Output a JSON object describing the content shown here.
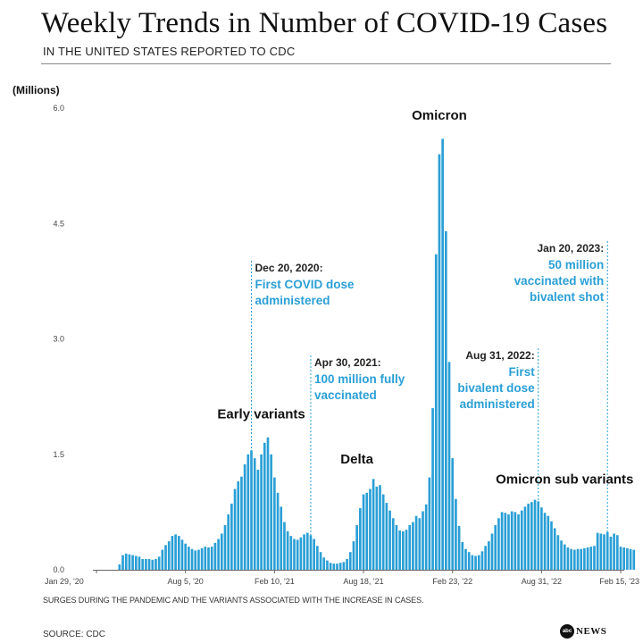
{
  "header": {
    "title": "Weekly Trends in Number of COVID-19 Cases",
    "subtitle": "IN THE UNITED STATES REPORTED TO CDC"
  },
  "footer": {
    "note": "SURGES DURING THE PANDEMIC AND THE VARIANTS ASSOCIATED WITH THE INCREASE IN CASES.",
    "source": "SOURCE: CDC",
    "brand_mark": "abc",
    "brand_text": "NEWS"
  },
  "colors": {
    "bars": "#2a9fd6",
    "annotation_text": "#2a9fd6",
    "text": "#111111"
  },
  "chart_data": {
    "type": "bar",
    "title": "Weekly Trends in Number of COVID-19 Cases",
    "ylabel": "(Millions)",
    "ylim": [
      0,
      6.0
    ],
    "yticks": [
      "0.0",
      "1.5",
      "3.0",
      "4.5",
      "6.0"
    ],
    "x_start_week": 0,
    "x_end_week": 159,
    "xticks": [
      {
        "label": "Jan 29, '20",
        "week": 0
      },
      {
        "label": "Aug 5, '20",
        "week": 27
      },
      {
        "label": "Feb 10, '21",
        "week": 54
      },
      {
        "label": "Aug 18, '21",
        "week": 81
      },
      {
        "label": "Feb 23, '22",
        "week": 108
      },
      {
        "label": "Aug 31, '22",
        "week": 135
      },
      {
        "label": "Feb 15, '23",
        "week": 159
      }
    ],
    "series": [
      {
        "name": "Weekly cases (millions)",
        "values": [
          0.0,
          0.0,
          0.0,
          0.0,
          0.0,
          0.0,
          0.0,
          0.07,
          0.19,
          0.21,
          0.2,
          0.19,
          0.18,
          0.17,
          0.14,
          0.14,
          0.14,
          0.13,
          0.14,
          0.17,
          0.26,
          0.32,
          0.37,
          0.44,
          0.46,
          0.44,
          0.39,
          0.34,
          0.3,
          0.27,
          0.25,
          0.26,
          0.28,
          0.3,
          0.29,
          0.3,
          0.35,
          0.4,
          0.47,
          0.58,
          0.72,
          0.86,
          1.05,
          1.15,
          1.21,
          1.37,
          1.5,
          1.55,
          1.45,
          1.3,
          1.5,
          1.65,
          1.72,
          1.5,
          1.2,
          1.0,
          0.82,
          0.62,
          0.5,
          0.44,
          0.4,
          0.39,
          0.42,
          0.46,
          0.48,
          0.45,
          0.4,
          0.31,
          0.23,
          0.16,
          0.12,
          0.09,
          0.08,
          0.08,
          0.09,
          0.1,
          0.14,
          0.23,
          0.37,
          0.58,
          0.8,
          0.98,
          1.0,
          1.05,
          1.18,
          1.08,
          1.1,
          0.98,
          0.87,
          0.77,
          0.67,
          0.58,
          0.51,
          0.5,
          0.52,
          0.58,
          0.62,
          0.7,
          0.67,
          0.76,
          0.85,
          1.2,
          2.1,
          4.1,
          5.4,
          5.6,
          4.4,
          2.7,
          1.45,
          0.92,
          0.57,
          0.36,
          0.27,
          0.23,
          0.19,
          0.18,
          0.19,
          0.24,
          0.31,
          0.37,
          0.47,
          0.58,
          0.67,
          0.75,
          0.74,
          0.72,
          0.76,
          0.75,
          0.72,
          0.77,
          0.82,
          0.86,
          0.88,
          0.91,
          0.89,
          0.81,
          0.74,
          0.7,
          0.63,
          0.54,
          0.45,
          0.38,
          0.33,
          0.29,
          0.27,
          0.26,
          0.27,
          0.27,
          0.28,
          0.29,
          0.3,
          0.31,
          0.48,
          0.47,
          0.46,
          0.49,
          0.43,
          0.47,
          0.45,
          0.3,
          0.29,
          0.28,
          0.27,
          0.26
        ]
      }
    ],
    "annotations": [
      {
        "date": "Dec 20, 2020:",
        "lines": [
          "First COVID dose",
          "administered"
        ],
        "week": 47,
        "align": "left"
      },
      {
        "date": "Apr 30, 2021:",
        "lines": [
          "100 million fully",
          "vaccinated"
        ],
        "week": 65,
        "align": "left"
      },
      {
        "date": "Aug 31, 2022:",
        "lines": [
          "First",
          "bivalent dose",
          "administered"
        ],
        "week": 134,
        "align": "right"
      },
      {
        "date": "Jan 20, 2023:",
        "lines": [
          "50 million",
          "vaccinated with",
          "bivalent shot"
        ],
        "week": 155,
        "align": "right"
      }
    ],
    "wave_labels": [
      {
        "text": "Early variants",
        "week": 50,
        "value": 1.97
      },
      {
        "text": "Delta",
        "week": 79,
        "value": 1.38
      },
      {
        "text": "Omicron",
        "week": 104,
        "value": 5.85
      },
      {
        "text": "Omicron sub variants",
        "week": 142,
        "value": 1.12
      }
    ]
  }
}
